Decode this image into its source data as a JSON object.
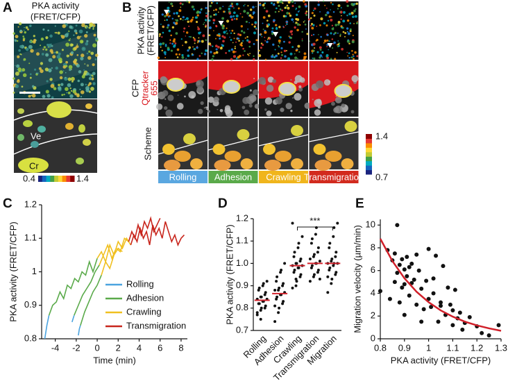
{
  "panel_a": {
    "label": "A",
    "title": [
      "PKA activity",
      "(FRET/CFP)"
    ],
    "vessel_label": "Ve",
    "cremaster_label": "Cr",
    "colorbar": [
      0.4,
      1.4
    ]
  },
  "panel_b": {
    "label": "B",
    "row_labels": {
      "pka": [
        "PKA activity",
        "(FRET/CFP)"
      ],
      "cfp": "CFP",
      "qtracker": [
        "Qtracker",
        "655"
      ],
      "scheme": "Scheme"
    },
    "stages": [
      {
        "name": "Rolling",
        "color": "#5aa7e0"
      },
      {
        "name": "Adhesion",
        "color": "#5aaa4a"
      },
      {
        "name": "Crawling",
        "color": "#f0b51c"
      },
      {
        "name": "Transmigration",
        "color": "#d22a1e"
      }
    ],
    "colorbar": [
      1.4,
      0.7
    ]
  },
  "chart_data": [
    {
      "type": "line",
      "label": "C",
      "xlabel": "Time (min)",
      "ylabel": "PKA activity (FRET/CFP)",
      "xlim": [
        -5.3,
        8.6
      ],
      "ylim": [
        0.8,
        1.2
      ],
      "xticks": [
        -4,
        -2,
        0,
        2,
        4,
        6,
        8
      ],
      "yticks": [
        0.8,
        0.9,
        1,
        1.1,
        1.2
      ],
      "series": [
        {
          "name": "Rolling",
          "color": "#4aa3df",
          "x": [
            -5,
            -4.8,
            -4.6,
            -2.4,
            -2.4,
            -2.3,
            -2.2,
            -1.8,
            -1.8,
            -1.7,
            -1.6
          ],
          "values": [
            0.8,
            0.84,
            0.87,
            null,
            0.85,
            0.86,
            0.87,
            null,
            0.81,
            0.83,
            0.84
          ]
        },
        {
          "name": "Adhesion",
          "color": "#5aaa4a",
          "x": [
            -4.6,
            -4.25,
            -3.9,
            -3.55,
            -3.2,
            -2.85,
            -2.5,
            -2.15,
            -1.8,
            -1.45,
            -1.1,
            -0.75,
            -0.4,
            0,
            -2.2,
            -2.2,
            -1.8,
            -1.4,
            -1,
            -0.6,
            -0.2,
            0.2,
            -1.6,
            -1.6,
            -1.2,
            -0.8,
            -0.4,
            0,
            0.4
          ],
          "values": [
            0.87,
            0.9,
            0.91,
            0.94,
            0.92,
            0.96,
            0.95,
            0.98,
            0.97,
            1,
            0.99,
            1.03,
            1,
            1.04,
            null,
            0.87,
            0.9,
            0.93,
            0.95,
            0.97,
            1,
            1.02,
            null,
            0.84,
            0.88,
            0.91,
            0.94,
            0.96,
            0.99
          ]
        },
        {
          "name": "Crawling",
          "color": "#f0c020",
          "x": [
            0,
            0.4,
            0.8,
            1.2,
            1.6,
            2,
            2.4,
            2.8,
            3.2,
            0.2,
            0.2,
            0.6,
            1,
            1.4,
            1.8,
            2.2,
            2.6,
            3,
            0.4,
            0.4,
            0.8,
            1.2,
            1.6,
            2,
            2.4
          ],
          "values": [
            1.04,
            1.06,
            1.03,
            1.08,
            1.05,
            1.09,
            1.07,
            1.1,
            1.08,
            null,
            1.02,
            1.05,
            1.08,
            1.04,
            1.07,
            1.06,
            1.1,
            1.09,
            null,
            0.99,
            1.03,
            1.01,
            1.05,
            1.07,
            1.06
          ]
        },
        {
          "name": "Transmigration",
          "color": "#c8251c",
          "x": [
            3.2,
            3.5,
            3.8,
            4.1,
            4.4,
            4.7,
            5,
            5.3,
            5.6,
            5.9,
            6.2,
            6.5,
            6.8,
            7.1,
            7.4,
            7.7,
            8,
            8.3,
            3,
            3,
            3.3,
            3.6,
            3.9,
            4.2,
            4.5,
            4.8,
            5.1,
            5.4,
            5.7,
            6
          ],
          "values": [
            1.08,
            1.11,
            1.09,
            1.13,
            1.1,
            1.12,
            1.08,
            1.14,
            1.11,
            1.13,
            1.1,
            1.15,
            1.12,
            1.09,
            1.11,
            1.08,
            1.1,
            1.11,
            null,
            1.09,
            1.12,
            1.1,
            1.14,
            1.11,
            1.15,
            1.13,
            1.16,
            1.12,
            1.14,
            1.16
          ]
        }
      ]
    },
    {
      "type": "dot",
      "label": "D",
      "ylabel": "PKA activity (FRET/CFP)",
      "ylim": [
        0.7,
        1.2
      ],
      "yticks": [
        0.7,
        0.8,
        0.9,
        {
          "value": 1,
          "label": "1.0"
        },
        1.1,
        1.2
      ],
      "color": "#111",
      "median_color": "#d0202a",
      "categories": [
        "Rolling",
        "Adhesion",
        "Crawling",
        "Transmigration",
        "Migration"
      ],
      "values": [
        [
          0.78,
          0.79,
          0.8,
          0.8,
          0.81,
          0.82,
          0.82,
          0.83,
          0.83,
          0.84,
          0.84,
          0.85,
          0.85,
          0.86,
          0.87,
          0.88,
          0.89,
          0.9,
          0.91,
          0.92,
          0.77,
          0.75
        ],
        [
          0.74,
          0.78,
          0.8,
          0.82,
          0.83,
          0.84,
          0.85,
          0.86,
          0.86,
          0.87,
          0.88,
          0.88,
          0.89,
          0.9,
          0.91,
          0.92,
          0.94,
          0.96,
          0.97,
          1,
          0.81
        ],
        [
          0.89,
          0.9,
          0.92,
          0.94,
          0.95,
          0.96,
          0.97,
          0.98,
          0.98,
          0.99,
          0.99,
          1,
          1,
          1.01,
          1.02,
          1.03,
          1.05,
          1.07,
          1.09,
          1.12,
          1.18,
          0.93
        ],
        [
          0.92,
          0.94,
          0.95,
          0.96,
          0.97,
          0.98,
          0.99,
          1,
          1,
          1.01,
          1.02,
          1.03,
          1.04,
          1.05,
          1.07,
          1.09,
          1.11,
          1.13,
          1.16,
          0.93
        ],
        [
          0.87,
          0.91,
          0.93,
          0.95,
          0.96,
          0.97,
          0.98,
          0.99,
          1,
          1,
          1,
          1.01,
          1.02,
          1.03,
          1.05,
          1.07,
          1.09,
          1.12,
          1.16,
          1.18,
          0.94
        ]
      ],
      "medians": [
        0.835,
        0.865,
        0.99,
        1,
        1
      ],
      "significance": {
        "label": "***",
        "categories": [
          "Crawling",
          "Migration"
        ]
      }
    },
    {
      "type": "scatter",
      "label": "E",
      "xlabel": "PKA activity (FRET/CFP)",
      "ylabel": "Migration velocity (µm/min)",
      "xlim": [
        0.8,
        1.3
      ],
      "ylim": [
        0,
        10.5
      ],
      "xticks": [
        0.8,
        0.9,
        1,
        1.1,
        1.2,
        1.3
      ],
      "yticks": [
        0,
        2,
        4,
        6,
        8,
        10
      ],
      "color": "#111",
      "x": [
        0.8,
        0.83,
        0.84,
        0.85,
        0.86,
        0.87,
        0.87,
        0.88,
        0.88,
        0.89,
        0.89,
        0.9,
        0.9,
        0.91,
        0.91,
        0.92,
        0.93,
        0.93,
        0.94,
        0.95,
        0.95,
        0.96,
        0.97,
        0.98,
        0.99,
        1,
        1,
        1.01,
        1.02,
        1.02,
        1.03,
        1.04,
        1.05,
        1.06,
        1.07,
        1.08,
        1.09,
        1.1,
        1.1,
        1.11,
        1.12,
        1.13,
        1.14,
        1.15,
        1.17,
        1.2,
        1.22,
        1.25,
        1.29,
        0.86,
        0.92,
        0.97,
        1.05,
        0.9
      ],
      "values": [
        4.2,
        7.8,
        3.5,
        6.9,
        7.5,
        5.8,
        10,
        6.5,
        3.2,
        7,
        4.5,
        6.1,
        2.1,
        5.5,
        7.2,
        3.8,
        6.6,
        4.9,
        5.2,
        7.4,
        3,
        6,
        4.4,
        2.6,
        5.1,
        7.9,
        3.5,
        2.8,
        5.3,
        4,
        7.3,
        1.5,
        3.2,
        6.4,
        2.1,
        4.5,
        3,
        1.2,
        2.5,
        4.3,
        1.8,
        2.3,
        0.8,
        1.4,
        1.9,
        1.1,
        0.5,
        0.3,
        1.2,
        5,
        6.3,
        1.5,
        2.9,
        4.8
      ],
      "fit": {
        "color": "#d0202a",
        "x": [
          0.8,
          0.85,
          0.9,
          0.95,
          1,
          1.05,
          1.1,
          1.15,
          1.2,
          1.25,
          1.3
        ],
        "values": [
          8.8,
          6.84,
          5.32,
          4.14,
          3.22,
          2.5,
          1.95,
          1.51,
          1.18,
          0.92,
          0.7
        ]
      }
    }
  ]
}
